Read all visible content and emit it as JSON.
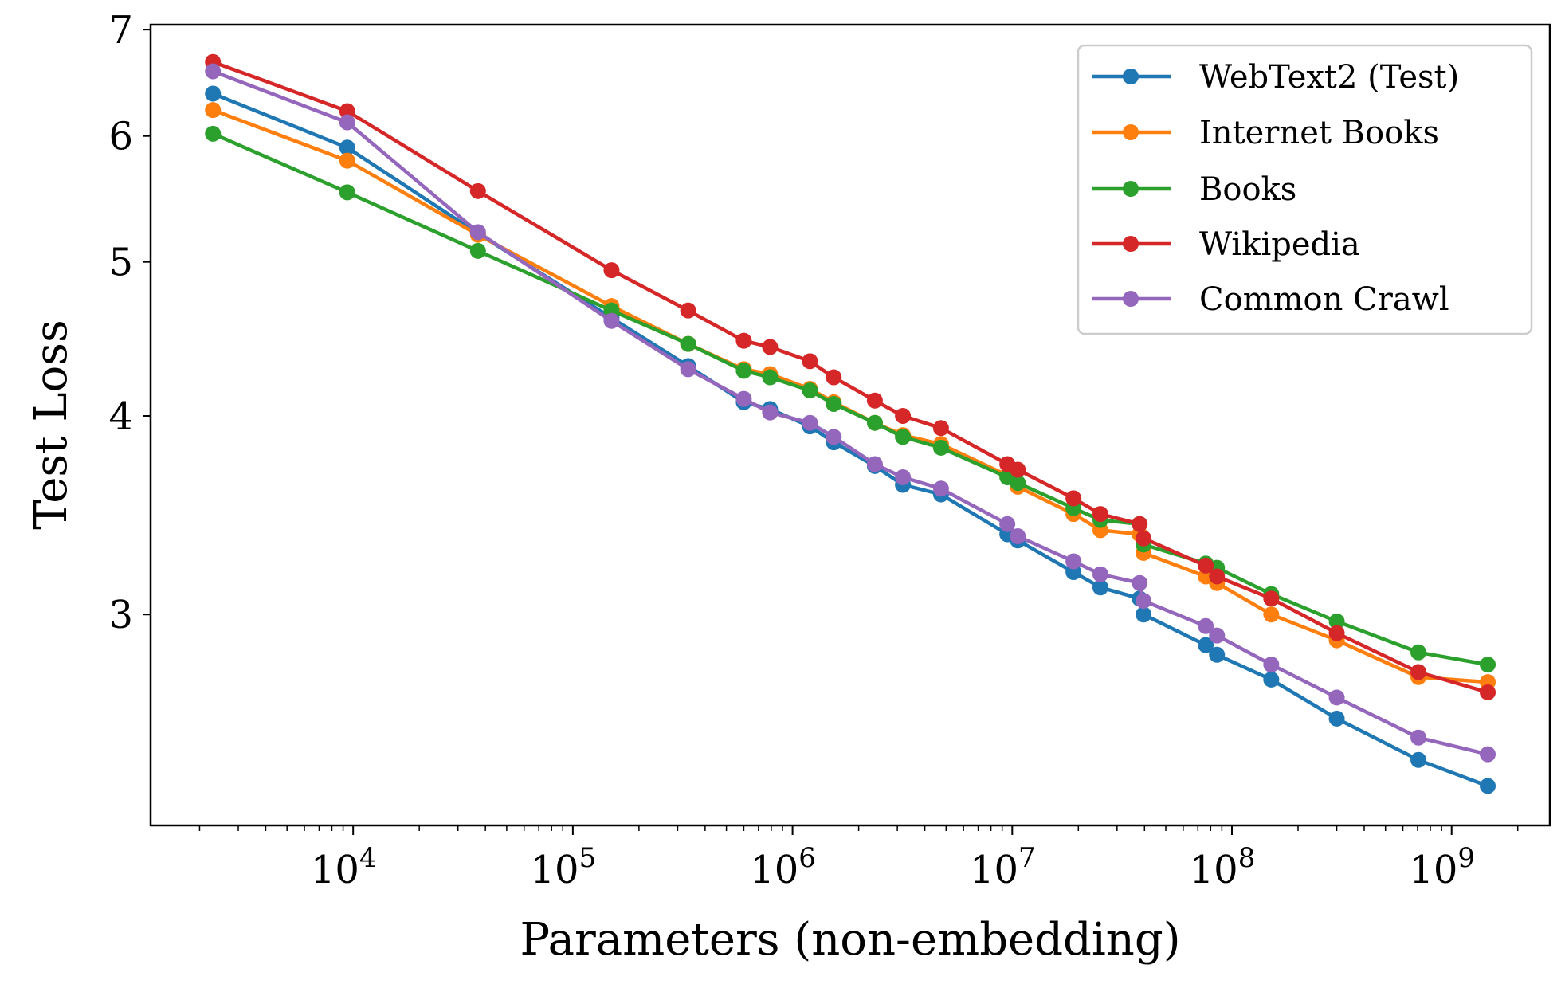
{
  "chart_data": {
    "type": "line",
    "title": "",
    "xlabel": "Parameters (non-embedding)",
    "ylabel": "Test Loss",
    "xscale": "log",
    "yscale": "log",
    "xlim": [
      1197,
      2800000000
    ],
    "ylim": [
      2.21,
      7.05
    ],
    "xticks": [
      {
        "value": 10000,
        "base": "10",
        "exp": "4"
      },
      {
        "value": 100000,
        "base": "10",
        "exp": "5"
      },
      {
        "value": 1000000,
        "base": "10",
        "exp": "6"
      },
      {
        "value": 10000000,
        "base": "10",
        "exp": "7"
      },
      {
        "value": 100000000,
        "base": "10",
        "exp": "8"
      },
      {
        "value": 1000000000,
        "base": "10",
        "exp": "9"
      }
    ],
    "yticks": [
      {
        "value": 3,
        "label": "3"
      },
      {
        "value": 4,
        "label": "4"
      },
      {
        "value": 5,
        "label": "5"
      },
      {
        "value": 6,
        "label": "6"
      },
      {
        "value": 7,
        "label": "7"
      }
    ],
    "grid": false,
    "legend_position": "top-right",
    "x": [
      2300,
      9400,
      37000,
      150000,
      335000,
      600000,
      790000,
      1200000,
      1540000,
      2370000,
      3180000,
      4740000,
      9500000,
      10600000,
      19000000,
      25200000,
      38000000,
      39600000,
      76000000,
      85500000,
      151000000,
      300000000,
      706000000,
      1460000000
    ],
    "series": [
      {
        "name": "WebText2 (Test)",
        "color": "#1f77b4",
        "values": [
          6.38,
          5.9,
          5.21,
          4.61,
          4.3,
          4.08,
          4.04,
          3.94,
          3.85,
          3.72,
          3.62,
          3.57,
          3.37,
          3.34,
          3.19,
          3.12,
          3.07,
          3.0,
          2.87,
          2.83,
          2.73,
          2.58,
          2.43,
          2.34
        ]
      },
      {
        "name": "Internet Books",
        "color": "#ff7f0e",
        "values": [
          6.23,
          5.79,
          5.2,
          4.69,
          4.44,
          4.28,
          4.25,
          4.16,
          4.08,
          3.96,
          3.89,
          3.84,
          3.67,
          3.61,
          3.47,
          3.39,
          3.37,
          3.28,
          3.17,
          3.14,
          3.0,
          2.89,
          2.74,
          2.72
        ]
      },
      {
        "name": "Books",
        "color": "#2ca02c",
        "values": [
          6.02,
          5.53,
          5.08,
          4.66,
          4.44,
          4.27,
          4.23,
          4.15,
          4.07,
          3.96,
          3.88,
          3.82,
          3.66,
          3.63,
          3.5,
          3.44,
          3.42,
          3.32,
          3.23,
          3.21,
          3.09,
          2.97,
          2.84,
          2.79
        ]
      },
      {
        "name": "Wikipedia",
        "color": "#d62728",
        "values": [
          6.68,
          6.22,
          5.54,
          4.94,
          4.66,
          4.46,
          4.42,
          4.33,
          4.23,
          4.09,
          4.0,
          3.93,
          3.73,
          3.7,
          3.55,
          3.47,
          3.42,
          3.35,
          3.22,
          3.17,
          3.07,
          2.92,
          2.76,
          2.68
        ]
      },
      {
        "name": "Common Crawl",
        "color": "#9467bd",
        "values": [
          6.59,
          6.12,
          5.22,
          4.59,
          4.28,
          4.1,
          4.02,
          3.96,
          3.88,
          3.73,
          3.66,
          3.6,
          3.42,
          3.36,
          3.24,
          3.18,
          3.14,
          3.06,
          2.95,
          2.91,
          2.79,
          2.66,
          2.51,
          2.45
        ]
      }
    ]
  }
}
